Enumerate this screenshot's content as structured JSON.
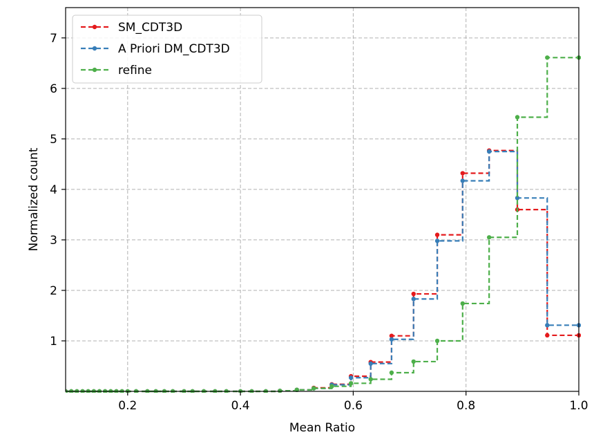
{
  "chart_data": {
    "type": "line",
    "drawstyle": "steps-post",
    "title": "",
    "xlabel": "Mean Ratio",
    "ylabel": "Normalized count",
    "xlim": [
      0.09,
      1.0
    ],
    "ylim": [
      0,
      7.6
    ],
    "x_ticks": [
      0.2,
      0.4,
      0.6,
      0.8,
      1.0
    ],
    "x_tick_labels": [
      "0.2",
      "0.4",
      "0.6",
      "0.8",
      "1.0"
    ],
    "y_ticks": [
      1,
      2,
      3,
      4,
      5,
      6,
      7
    ],
    "y_tick_labels": [
      "1",
      "2",
      "3",
      "4",
      "5",
      "6",
      "7"
    ],
    "grid": true,
    "legend_position": "top-left",
    "x": [
      0.09,
      0.1,
      0.11,
      0.12,
      0.13,
      0.14,
      0.15,
      0.16,
      0.17,
      0.18,
      0.19,
      0.2,
      0.215,
      0.235,
      0.25,
      0.265,
      0.28,
      0.3,
      0.315,
      0.335,
      0.355,
      0.375,
      0.4,
      0.42,
      0.445,
      0.47,
      0.5,
      0.53,
      0.562,
      0.596,
      0.631,
      0.668,
      0.707,
      0.749,
      0.794,
      0.841,
      0.891,
      0.944,
      1.0
    ],
    "series": [
      {
        "name": "SM_CDT3D",
        "color": "#e41a1c",
        "values": [
          0,
          0,
          0,
          0,
          0,
          0,
          0,
          0,
          0,
          0,
          0,
          0,
          0,
          0,
          0,
          0,
          0,
          0,
          0,
          0,
          0,
          0,
          0,
          0,
          0,
          0.01,
          0.03,
          0.07,
          0.14,
          0.3,
          0.58,
          1.1,
          1.93,
          3.1,
          4.32,
          4.77,
          3.6,
          1.11,
          1.11
        ]
      },
      {
        "name": "A Priori DM_CDT3D",
        "color": "#377eb8",
        "values": [
          0,
          0,
          0,
          0,
          0,
          0,
          0,
          0,
          0,
          0,
          0,
          0,
          0,
          0,
          0,
          0,
          0,
          0,
          0,
          0,
          0,
          0,
          0,
          0,
          0,
          0.01,
          0.03,
          0.06,
          0.13,
          0.27,
          0.55,
          1.03,
          1.83,
          2.98,
          4.17,
          4.75,
          3.83,
          1.31,
          1.31
        ]
      },
      {
        "name": "refine",
        "color": "#4daf4a",
        "values": [
          0,
          0,
          0,
          0,
          0,
          0,
          0,
          0,
          0,
          0,
          0,
          0,
          0,
          0,
          0,
          0,
          0,
          0,
          0,
          0,
          0,
          0,
          0,
          0,
          0,
          0.01,
          0.03,
          0.06,
          0.1,
          0.16,
          0.24,
          0.37,
          0.59,
          1.0,
          1.74,
          3.05,
          5.43,
          6.61,
          6.61
        ]
      }
    ]
  }
}
